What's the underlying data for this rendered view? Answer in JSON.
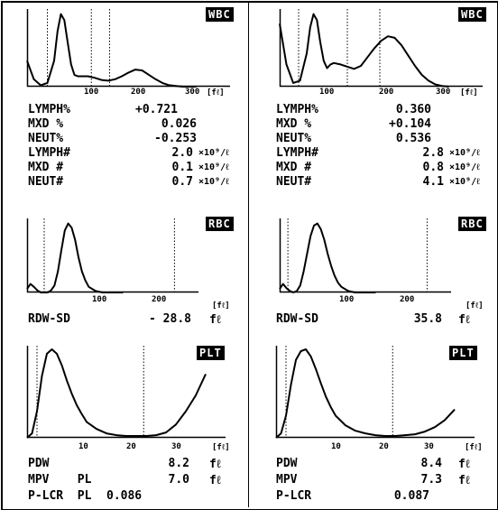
{
  "panels": [
    {
      "wbc": {
        "badge": "WBC",
        "ticks": [
          "100",
          "200",
          "300"
        ],
        "unit": "[fℓ]",
        "rows": [
          {
            "label": "LYMPH%",
            "value": "+0.721",
            "unit": ""
          },
          {
            "label": "MXD %",
            "value": "0.026",
            "unit": ""
          },
          {
            "label": "NEUT%",
            "value": "-0.253",
            "unit": ""
          },
          {
            "label": "LYMPH#",
            "value": "2.0",
            "unit": "×10⁹/ℓ"
          },
          {
            "label": "MXD #",
            "value": "0.1",
            "unit": "×10⁹/ℓ"
          },
          {
            "label": "NEUT#",
            "value": "0.7",
            "unit": "×10⁹/ℓ"
          }
        ]
      },
      "rbc": {
        "badge": "RBC",
        "ticks": [
          "100",
          "200"
        ],
        "unit": "[fℓ]",
        "rows": [
          {
            "label": "RDW-SD",
            "value": "- 28.8",
            "unit": "fℓ"
          }
        ]
      },
      "plt": {
        "badge": "PLT",
        "ticks": [
          "10",
          "20",
          "30"
        ],
        "unit": "[fℓ]",
        "rows": [
          {
            "label": "PDW",
            "value": "8.2",
            "unit": "fℓ"
          },
          {
            "label": "MPV    PL",
            "value": "7.0",
            "unit": "fℓ"
          },
          {
            "label": "P-LCR  PL",
            "value": "0.086",
            "unit": ""
          }
        ]
      }
    },
    {
      "wbc": {
        "badge": "WBC",
        "ticks": [
          "100",
          "200",
          "300"
        ],
        "unit": "[fℓ]",
        "rows": [
          {
            "label": "LYMPH%",
            "value": "0.360",
            "unit": ""
          },
          {
            "label": "MXD %",
            "value": "+0.104",
            "unit": ""
          },
          {
            "label": "NEUT%",
            "value": "0.536",
            "unit": ""
          },
          {
            "label": "LYMPH#",
            "value": "2.8",
            "unit": "×10⁹/ℓ"
          },
          {
            "label": "MXD #",
            "value": "0.8",
            "unit": "×10⁹/ℓ"
          },
          {
            "label": "NEUT#",
            "value": "4.1",
            "unit": "×10⁹/ℓ"
          }
        ]
      },
      "rbc": {
        "badge": "RBC",
        "ticks": [
          "100",
          "200"
        ],
        "unit": "[fℓ]",
        "rows": [
          {
            "label": "RDW-SD",
            "value": "35.8",
            "unit": "fℓ"
          }
        ]
      },
      "plt": {
        "badge": "PLT",
        "ticks": [
          "10",
          "20",
          "30"
        ],
        "unit": "[fℓ]",
        "rows": [
          {
            "label": "PDW",
            "value": "8.4",
            "unit": "fℓ"
          },
          {
            "label": "MPV",
            "value": "7.3",
            "unit": "fℓ"
          },
          {
            "label": "P-LCR",
            "value": "0.087",
            "unit": ""
          }
        ]
      }
    }
  ],
  "chart_data": [
    {
      "type": "line",
      "name": "wbc-left",
      "xlim": [
        0,
        300
      ],
      "ylim": [
        0,
        1
      ],
      "markers": [
        30,
        95,
        122
      ],
      "x": [
        0,
        10,
        20,
        30,
        40,
        45,
        50,
        55,
        60,
        65,
        70,
        75,
        80,
        90,
        100,
        110,
        120,
        130,
        140,
        150,
        160,
        170,
        180,
        190,
        200,
        210,
        220,
        230,
        240,
        250
      ],
      "y": [
        0.35,
        0.1,
        0.02,
        0.05,
        0.35,
        0.75,
        0.98,
        0.9,
        0.6,
        0.3,
        0.16,
        0.14,
        0.14,
        0.14,
        0.12,
        0.09,
        0.08,
        0.1,
        0.14,
        0.19,
        0.23,
        0.22,
        0.16,
        0.1,
        0.05,
        0.02,
        0.01,
        0.0,
        0.0,
        0.0
      ]
    },
    {
      "type": "line",
      "name": "wbc-right",
      "xlim": [
        0,
        300
      ],
      "ylim": [
        0,
        1
      ],
      "markers": [
        28,
        100,
        148
      ],
      "x": [
        0,
        10,
        20,
        30,
        40,
        45,
        50,
        55,
        60,
        65,
        70,
        75,
        80,
        90,
        100,
        110,
        120,
        130,
        140,
        150,
        160,
        170,
        180,
        190,
        200,
        210,
        220,
        230,
        240,
        250
      ],
      "y": [
        0.85,
        0.3,
        0.05,
        0.08,
        0.45,
        0.8,
        0.98,
        0.9,
        0.6,
        0.35,
        0.25,
        0.3,
        0.32,
        0.3,
        0.27,
        0.24,
        0.28,
        0.4,
        0.52,
        0.62,
        0.68,
        0.66,
        0.56,
        0.42,
        0.28,
        0.16,
        0.08,
        0.03,
        0.01,
        0.0
      ]
    },
    {
      "type": "line",
      "name": "rbc-left",
      "xlim": [
        0,
        250
      ],
      "ylim": [
        0,
        1
      ],
      "markers": [
        25,
        215
      ],
      "x": [
        0,
        5,
        10,
        15,
        20,
        25,
        30,
        35,
        40,
        45,
        50,
        55,
        60,
        65,
        70,
        75,
        80,
        85,
        90,
        100,
        110,
        120,
        130,
        140
      ],
      "y": [
        0.05,
        0.12,
        0.08,
        0.03,
        0.0,
        0.0,
        0.0,
        0.03,
        0.1,
        0.3,
        0.6,
        0.88,
        0.98,
        0.92,
        0.75,
        0.5,
        0.3,
        0.17,
        0.08,
        0.02,
        0.0,
        0.0,
        0.0,
        0.0
      ]
    },
    {
      "type": "line",
      "name": "rbc-right",
      "xlim": [
        0,
        250
      ],
      "ylim": [
        0,
        1
      ],
      "markers": [
        12,
        215
      ],
      "x": [
        0,
        5,
        10,
        15,
        20,
        25,
        30,
        35,
        40,
        45,
        50,
        55,
        60,
        65,
        70,
        75,
        80,
        85,
        90,
        100,
        110,
        120,
        130,
        140
      ],
      "y": [
        0.05,
        0.12,
        0.06,
        0.02,
        0.0,
        0.02,
        0.1,
        0.3,
        0.55,
        0.8,
        0.95,
        0.98,
        0.9,
        0.75,
        0.55,
        0.38,
        0.24,
        0.14,
        0.08,
        0.02,
        0.0,
        0.0,
        0.0,
        0.0
      ]
    },
    {
      "type": "line",
      "name": "plt-left",
      "xlim": [
        0,
        40
      ],
      "ylim": [
        0,
        1
      ],
      "markers": [
        2,
        23.5
      ],
      "x": [
        0,
        1,
        2,
        3,
        4,
        5,
        6,
        7,
        8,
        9,
        10,
        11,
        12,
        14,
        16,
        18,
        20,
        22,
        24,
        26,
        28,
        30,
        32,
        34,
        36
      ],
      "y": [
        0.0,
        0.05,
        0.3,
        0.7,
        0.95,
        1.0,
        0.95,
        0.82,
        0.65,
        0.5,
        0.37,
        0.27,
        0.18,
        0.1,
        0.05,
        0.03,
        0.02,
        0.02,
        0.02,
        0.03,
        0.06,
        0.15,
        0.3,
        0.48,
        0.72
      ]
    },
    {
      "type": "line",
      "name": "plt-right",
      "xlim": [
        0,
        40
      ],
      "ylim": [
        0,
        1
      ],
      "markers": [
        2,
        23.5
      ],
      "x": [
        0,
        1,
        2,
        3,
        4,
        5,
        6,
        7,
        8,
        9,
        10,
        11,
        12,
        14,
        16,
        18,
        20,
        22,
        24,
        26,
        28,
        30,
        32,
        34,
        36
      ],
      "y": [
        0.0,
        0.05,
        0.25,
        0.6,
        0.88,
        0.98,
        1.0,
        0.92,
        0.78,
        0.62,
        0.47,
        0.35,
        0.25,
        0.14,
        0.08,
        0.05,
        0.03,
        0.02,
        0.02,
        0.03,
        0.04,
        0.07,
        0.12,
        0.2,
        0.32
      ]
    }
  ]
}
